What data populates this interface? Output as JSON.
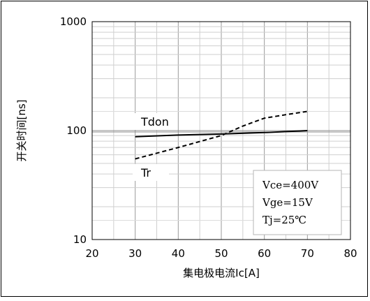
{
  "chart_data": {
    "type": "line",
    "xlabel": "集电极电流Ic[A]",
    "ylabel": "开关时间[ns]",
    "xlim": [
      20,
      80
    ],
    "ylim": [
      10,
      1000
    ],
    "yscale": "log",
    "grid": true,
    "x_ticks": [
      "20",
      "30",
      "40",
      "50",
      "60",
      "70",
      "80"
    ],
    "y_ticks": [
      "10",
      "100",
      "1000"
    ],
    "series": [
      {
        "name": "Tdon",
        "line_style": "solid",
        "x": [
          30,
          40,
          50,
          60,
          70
        ],
        "y": [
          88,
          91,
          93,
          96,
          100
        ]
      },
      {
        "name": "Tr",
        "line_style": "dashed",
        "x": [
          30,
          40,
          50,
          55,
          60,
          65,
          70
        ],
        "y": [
          55,
          70,
          90,
          110,
          130,
          140,
          150
        ]
      }
    ],
    "annotations": [
      "Vce=400V",
      "Vge=15V",
      "Tj=25℃"
    ]
  }
}
